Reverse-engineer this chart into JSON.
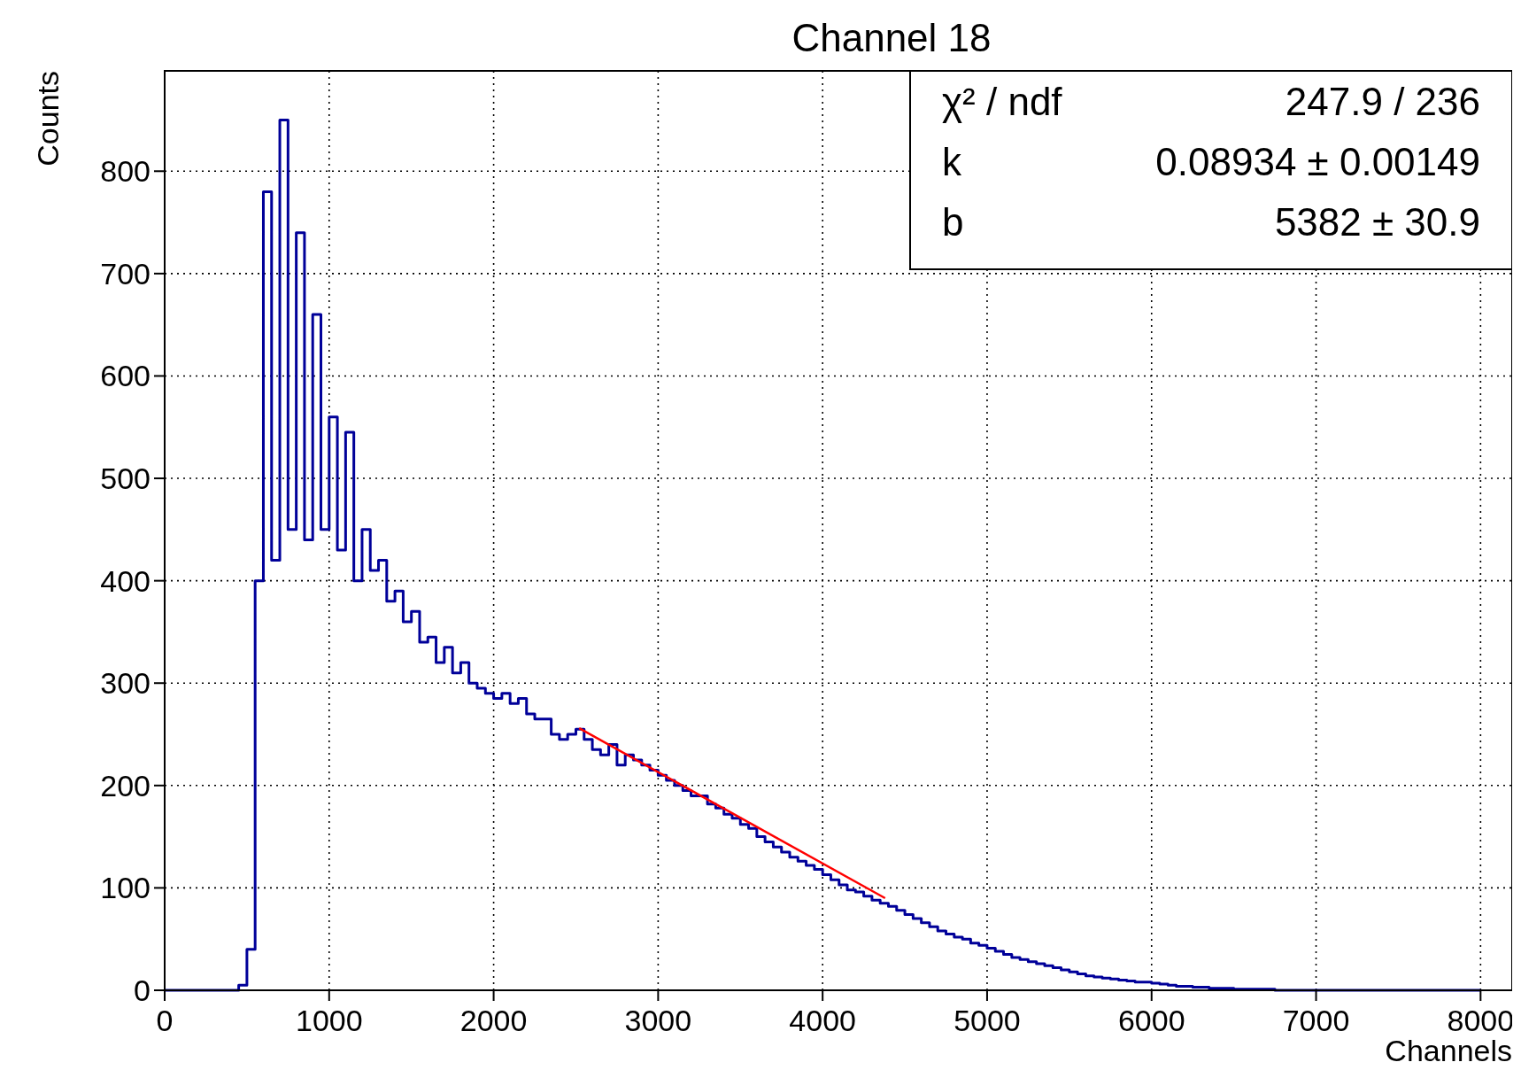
{
  "chart_data": {
    "type": "histogram",
    "title": "Channel 18",
    "xlabel": "Channels",
    "ylabel": "Counts",
    "bins": [
      0,
      50,
      100,
      150,
      200,
      250,
      300,
      350,
      400,
      450,
      500,
      550,
      600,
      650,
      700,
      750,
      800,
      850,
      900,
      950,
      1000,
      1050,
      1100,
      1150,
      1200,
      1250,
      1300,
      1350,
      1400,
      1450,
      1500,
      1550,
      1600,
      1650,
      1700,
      1750,
      1800,
      1850,
      1900,
      1950,
      2000,
      2050,
      2100,
      2150,
      2200,
      2250,
      2300,
      2350,
      2400,
      2450,
      2500,
      2550,
      2600,
      2650,
      2700,
      2750,
      2800,
      2850,
      2900,
      2950,
      3000,
      3050,
      3100,
      3150,
      3200,
      3250,
      3300,
      3350,
      3400,
      3450,
      3500,
      3550,
      3600,
      3650,
      3700,
      3750,
      3800,
      3850,
      3900,
      3950,
      4000,
      4050,
      4100,
      4150,
      4200,
      4250,
      4300,
      4350,
      4400,
      4450,
      4500,
      4550,
      4600,
      4650,
      4700,
      4750,
      4800,
      4850,
      4900,
      4950,
      5000,
      5050,
      5100,
      5150,
      5200,
      5250,
      5300,
      5350,
      5400,
      5450,
      5500,
      5550,
      5600,
      5650,
      5700,
      5750,
      5800,
      5850,
      5900,
      5950,
      6000,
      6050,
      6100,
      6150,
      6200,
      6250,
      6300,
      6350,
      6400,
      6450,
      6500,
      6550,
      6600,
      6650,
      6700,
      6750,
      6800,
      6850,
      6900,
      6950,
      7000,
      7050,
      7100,
      7150,
      7200,
      7250,
      7300,
      7350,
      7400,
      7450,
      7500,
      7550,
      7600,
      7650,
      7700,
      7750,
      7800,
      7850,
      7900,
      7950,
      8000
    ],
    "series": [
      {
        "color": "#000099",
        "values": [
          0,
          0,
          0,
          0,
          0,
          0,
          0,
          0,
          0,
          5,
          40,
          400,
          780,
          420,
          850,
          450,
          740,
          440,
          660,
          450,
          560,
          430,
          545,
          400,
          450,
          410,
          420,
          380,
          390,
          360,
          370,
          340,
          345,
          320,
          335,
          310,
          320,
          300,
          295,
          290,
          285,
          290,
          280,
          285,
          270,
          265,
          265,
          250,
          245,
          250,
          255,
          245,
          235,
          230,
          240,
          220,
          230,
          225,
          220,
          215,
          210,
          205,
          200,
          195,
          190,
          190,
          182,
          178,
          172,
          168,
          162,
          158,
          150,
          145,
          140,
          135,
          130,
          126,
          122,
          118,
          113,
          108,
          103,
          98,
          96,
          92,
          88,
          85,
          82,
          78,
          74,
          70,
          66,
          62,
          58,
          55,
          52,
          50,
          46,
          44,
          41,
          38,
          35,
          32,
          30,
          28,
          26,
          24,
          22,
          20,
          18,
          16,
          14,
          13,
          12,
          11,
          10,
          9,
          8,
          8,
          7,
          6,
          5,
          4,
          4,
          3,
          3,
          2,
          2,
          2,
          1,
          1,
          1,
          1,
          1,
          0,
          0,
          0,
          0,
          0,
          0,
          0,
          0,
          0,
          0,
          0,
          0,
          0,
          0,
          0,
          0,
          0,
          0,
          0,
          0,
          0,
          0,
          0,
          0,
          0
        ]
      },
      {
        "type": "line",
        "color": "#ff0000",
        "x": [
          2520,
          4380
        ],
        "values": [
          256,
          90
        ]
      }
    ],
    "xlim": [
      0,
      8192
    ],
    "ylim": [
      0,
      898
    ],
    "xticks": [
      0,
      1000,
      2000,
      3000,
      4000,
      5000,
      6000,
      7000,
      8000
    ],
    "yticks": [
      0,
      100,
      200,
      300,
      400,
      500,
      600,
      700,
      800
    ],
    "grid": true,
    "annotations": [
      "χ² / ndf",
      "247.9 / 236",
      "k",
      "0.08934 ± 0.00149",
      "b",
      "5382 ± 30.9"
    ]
  }
}
